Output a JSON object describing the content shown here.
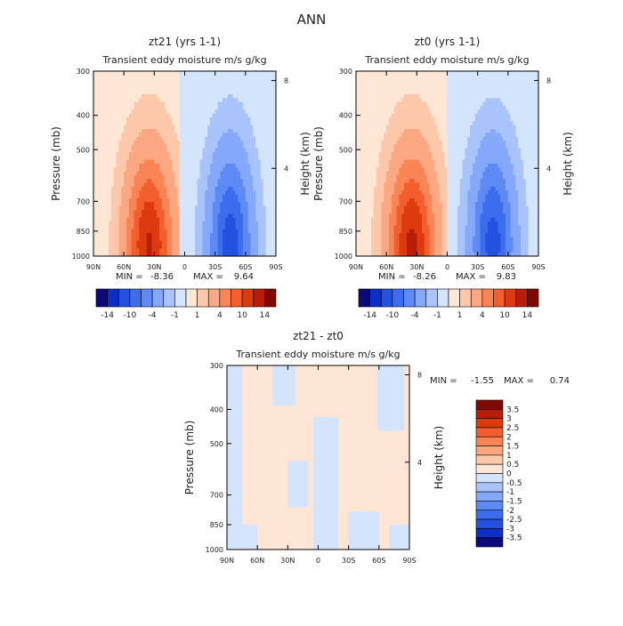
{
  "page_title": "ANN",
  "chart_data": [
    {
      "type": "heatmap",
      "title": "zt21 (yrs 1-1)",
      "subtitle": "Transient eddy moisture m/s g/kg",
      "ylabel": "Pressure (mb)",
      "ylabel_right": "Height (km)",
      "x_ticks": [
        "90N",
        "60N",
        "30N",
        "0",
        "30S",
        "60S",
        "90S"
      ],
      "x_values": [
        90,
        60,
        30,
        0,
        -30,
        -60,
        -90
      ],
      "y_ticks": [
        "300",
        "400",
        "500",
        "700",
        "850",
        "1000"
      ],
      "y_values": [
        300,
        400,
        500,
        700,
        850,
        1000
      ],
      "y_scale": "log",
      "ylim": [
        1000,
        300
      ],
      "xlim": [
        90,
        -90
      ],
      "right_ticks": [
        "8",
        "4"
      ],
      "right_values_km": [
        8,
        4
      ],
      "field": {
        "north_peak": {
          "lat": 35,
          "plev": 930,
          "value": 9.64,
          "lat_width": 22
        },
        "south_peak": {
          "lat": -45,
          "plev": 920,
          "value": -8.36,
          "lat_width": 20
        },
        "zero_line_lat": 4
      },
      "stats": {
        "min_label": "MIN =",
        "min": "-8.36",
        "max_label": "MAX =",
        "max": "9.64"
      },
      "colorbar": {
        "orientation": "horizontal",
        "levels": [
          "-14",
          "-10",
          "-4",
          "-1",
          "1",
          "4",
          "10",
          "14"
        ],
        "colors": [
          "#0a0a7a",
          "#0d2ec9",
          "#2451e0",
          "#3d6ded",
          "#5d8af5",
          "#86a8fa",
          "#a9c3fb",
          "#d4e4fd",
          "#fde6d4",
          "#fcc8a9",
          "#fba882",
          "#f98456",
          "#f25e2d",
          "#dd3a0f",
          "#b81d07",
          "#7f0a05"
        ]
      }
    },
    {
      "type": "heatmap",
      "title": "zt0 (yrs 1-1)",
      "subtitle": "Transient eddy moisture m/s g/kg",
      "ylabel": "Pressure (mb)",
      "ylabel_right": "Height (km)",
      "x_ticks": [
        "90N",
        "60N",
        "30N",
        "0",
        "30S",
        "60S",
        "90S"
      ],
      "x_values": [
        90,
        60,
        30,
        0,
        -30,
        -60,
        -90
      ],
      "y_ticks": [
        "300",
        "400",
        "500",
        "700",
        "850",
        "1000"
      ],
      "y_values": [
        300,
        400,
        500,
        700,
        850,
        1000
      ],
      "y_scale": "log",
      "ylim": [
        1000,
        300
      ],
      "xlim": [
        90,
        -90
      ],
      "right_ticks": [
        "8",
        "4"
      ],
      "right_values_km": [
        8,
        4
      ],
      "field": {
        "north_peak": {
          "lat": 35,
          "plev": 930,
          "value": 9.83,
          "lat_width": 22
        },
        "south_peak": {
          "lat": -45,
          "plev": 920,
          "value": -8.26,
          "lat_width": 20
        },
        "zero_line_lat": 1
      },
      "stats": {
        "min_label": "MIN =",
        "min": "-8.26",
        "max_label": "MAX =",
        "max": "9.83"
      },
      "colorbar": {
        "orientation": "horizontal",
        "levels": [
          "-14",
          "-10",
          "-4",
          "-1",
          "1",
          "4",
          "10",
          "14"
        ],
        "colors": [
          "#0a0a7a",
          "#0d2ec9",
          "#2451e0",
          "#3d6ded",
          "#5d8af5",
          "#86a8fa",
          "#a9c3fb",
          "#d4e4fd",
          "#fde6d4",
          "#fcc8a9",
          "#fba882",
          "#f98456",
          "#f25e2d",
          "#dd3a0f",
          "#b81d07",
          "#7f0a05"
        ]
      }
    },
    {
      "type": "heatmap",
      "title": "zt21 - zt0",
      "subtitle": "Transient eddy moisture m/s g/kg",
      "ylabel": "Pressure (mb)",
      "ylabel_right": "Height (km)",
      "x_ticks": [
        "90N",
        "60N",
        "30N",
        "0",
        "30S",
        "60S",
        "90S"
      ],
      "x_values": [
        90,
        60,
        30,
        0,
        -30,
        -60,
        -90
      ],
      "y_ticks": [
        "300",
        "400",
        "500",
        "700",
        "850",
        "1000"
      ],
      "y_values": [
        300,
        400,
        500,
        700,
        850,
        1000
      ],
      "y_scale": "log",
      "ylim": [
        1000,
        300
      ],
      "xlim": [
        90,
        -90
      ],
      "right_ticks": [
        "8",
        "4"
      ],
      "right_values_km": [
        8,
        4
      ],
      "regions_negative": [
        {
          "lat": [
            90,
            75
          ],
          "plev": [
            300,
            1000
          ]
        },
        {
          "lat": [
            75,
            60
          ],
          "plev": [
            850,
            1000
          ]
        },
        {
          "lat": [
            45,
            22
          ],
          "plev": [
            300,
            390
          ]
        },
        {
          "lat": [
            30,
            10
          ],
          "plev": [
            560,
            760
          ]
        },
        {
          "lat": [
            5,
            -20
          ],
          "plev": [
            420,
            1000
          ]
        },
        {
          "lat": [
            -30,
            -60
          ],
          "plev": [
            780,
            1000
          ]
        },
        {
          "lat": [
            -58,
            -85
          ],
          "plev": [
            300,
            460
          ]
        },
        {
          "lat": [
            -70,
            -90
          ],
          "plev": [
            850,
            1000
          ]
        }
      ],
      "stats": {
        "min_label": "MIN =",
        "min": "-1.55",
        "max_label": "MAX =",
        "max": "0.74"
      },
      "colorbar": {
        "orientation": "vertical",
        "levels": [
          "3.5",
          "3",
          "2.5",
          "2",
          "1.5",
          "1",
          "0.5",
          "0",
          "-0.5",
          "-1",
          "-1.5",
          "-2",
          "-2.5",
          "-3",
          "-3.5"
        ],
        "colors": [
          "#7f0a05",
          "#b81d07",
          "#dd3a0f",
          "#f25e2d",
          "#f98456",
          "#fba882",
          "#fcc8a9",
          "#fde6d4",
          "#d4e4fd",
          "#a9c3fb",
          "#86a8fa",
          "#5d8af5",
          "#3d6ded",
          "#2451e0",
          "#0d2ec9",
          "#0a0a7a"
        ]
      }
    }
  ]
}
